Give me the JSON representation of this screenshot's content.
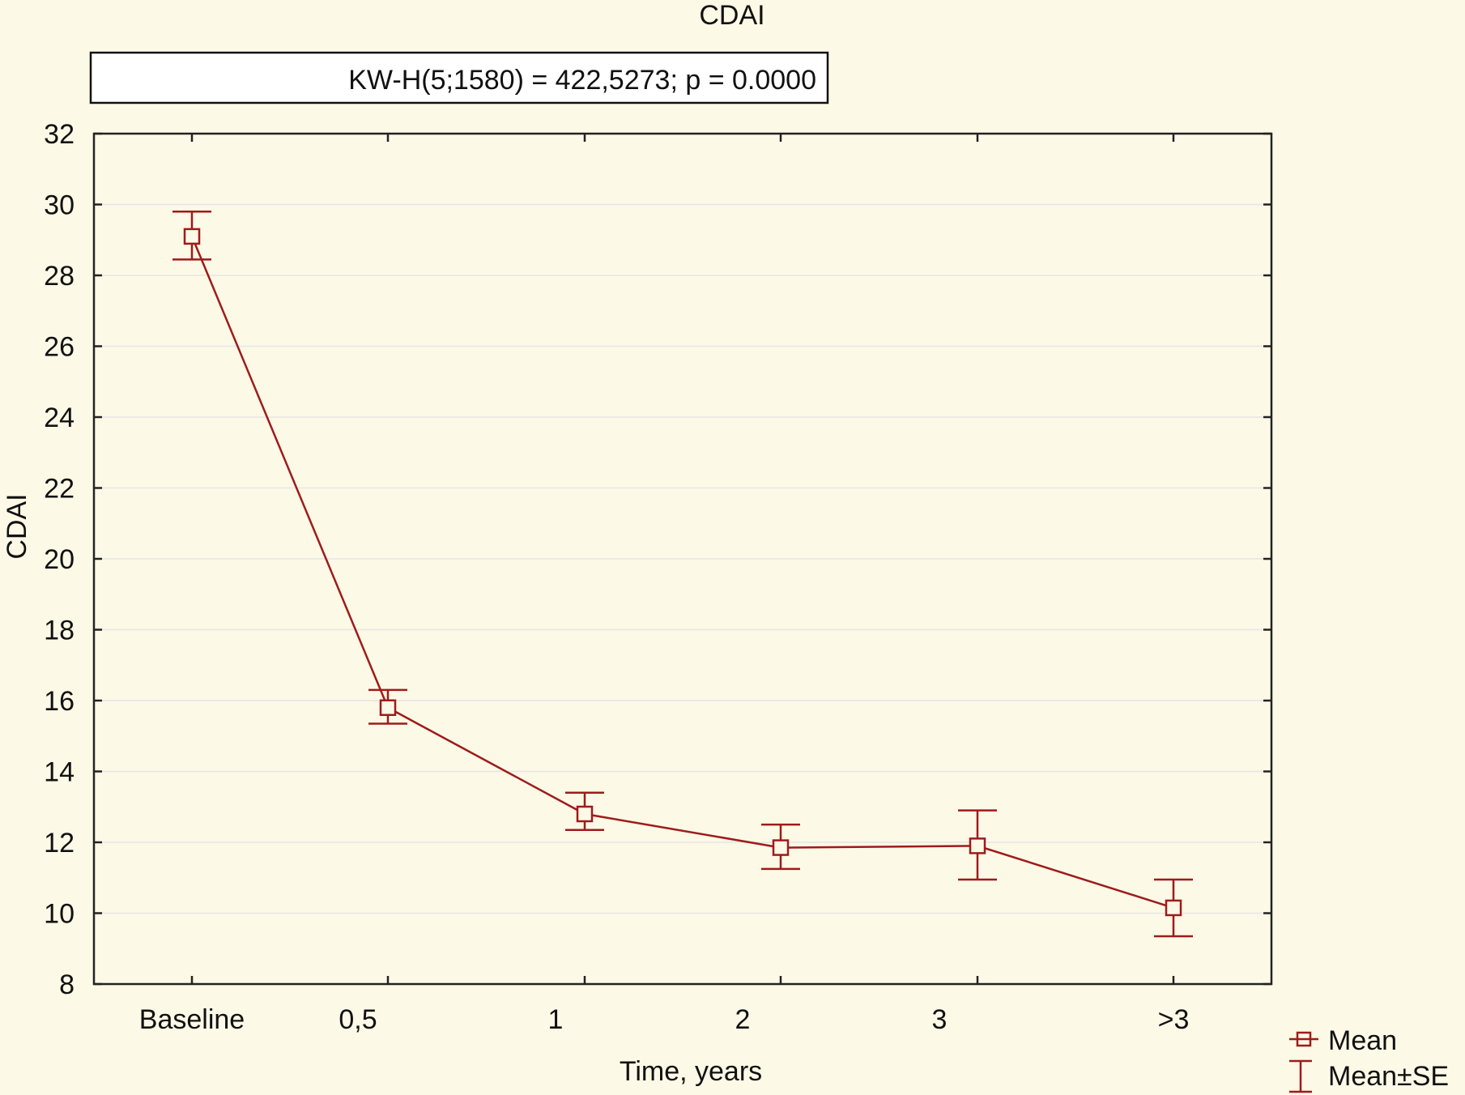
{
  "colors": {
    "background": "#fdf9e7",
    "series": "#9e1b1b",
    "axis": "#222222",
    "grid": "#e6e6e6"
  },
  "chart_data": {
    "type": "line",
    "title": "CDAI",
    "stat_text": "KW-H(5;1580) = 422,5273; p = 0.0000",
    "xlabel": "Time, years",
    "ylabel": "CDAI",
    "categories": [
      "Baseline",
      "0,5",
      "1",
      "2",
      "3",
      ">3"
    ],
    "ylim": [
      8,
      32
    ],
    "yticks": [
      "8",
      "10",
      "12",
      "14",
      "16",
      "18",
      "20",
      "22",
      "24",
      "26",
      "28",
      "30",
      "32"
    ],
    "grid": true,
    "series": [
      {
        "name": "Mean",
        "values": [
          29.1,
          15.8,
          12.8,
          11.85,
          11.9,
          10.15
        ],
        "lower": [
          28.45,
          15.35,
          12.35,
          11.25,
          10.95,
          9.35
        ],
        "upper": [
          29.8,
          16.3,
          13.4,
          12.5,
          12.9,
          10.95
        ]
      }
    ],
    "error_bar_label": "Mean±SE",
    "legend_position": "bottom-right"
  }
}
